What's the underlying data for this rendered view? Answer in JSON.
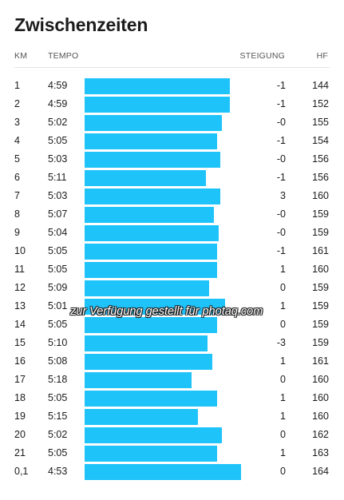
{
  "page": {
    "title": "Zwischenzeiten"
  },
  "columns": {
    "km": "KM",
    "tempo": "TEMPO",
    "steigung": "STEIGUNG",
    "hf": "HF"
  },
  "accent_color": "#1ec3fa",
  "watermark": "zur Verfügung gestellt für photaq.com",
  "splits": [
    {
      "km": "1",
      "tempo": "4:59",
      "pace_fraction": 0.91,
      "steigung": "-1",
      "hf": "144"
    },
    {
      "km": "2",
      "tempo": "4:59",
      "pace_fraction": 0.91,
      "steigung": "-1",
      "hf": "152"
    },
    {
      "km": "3",
      "tempo": "5:02",
      "pace_fraction": 0.86,
      "steigung": "-0",
      "hf": "155"
    },
    {
      "km": "4",
      "tempo": "5:05",
      "pace_fraction": 0.83,
      "steigung": "-1",
      "hf": "154"
    },
    {
      "km": "5",
      "tempo": "5:03",
      "pace_fraction": 0.85,
      "steigung": "-0",
      "hf": "156"
    },
    {
      "km": "6",
      "tempo": "5:11",
      "pace_fraction": 0.76,
      "steigung": "-1",
      "hf": "156"
    },
    {
      "km": "7",
      "tempo": "5:03",
      "pace_fraction": 0.85,
      "steigung": "3",
      "hf": "160"
    },
    {
      "km": "8",
      "tempo": "5:07",
      "pace_fraction": 0.81,
      "steigung": "-0",
      "hf": "159"
    },
    {
      "km": "9",
      "tempo": "5:04",
      "pace_fraction": 0.84,
      "steigung": "-0",
      "hf": "159"
    },
    {
      "km": "10",
      "tempo": "5:05",
      "pace_fraction": 0.83,
      "steigung": "-1",
      "hf": "161"
    },
    {
      "km": "11",
      "tempo": "5:05",
      "pace_fraction": 0.83,
      "steigung": "1",
      "hf": "160"
    },
    {
      "km": "12",
      "tempo": "5:09",
      "pace_fraction": 0.78,
      "steigung": "0",
      "hf": "159"
    },
    {
      "km": "13",
      "tempo": "5:01",
      "pace_fraction": 0.88,
      "steigung": "1",
      "hf": "159"
    },
    {
      "km": "14",
      "tempo": "5:05",
      "pace_fraction": 0.83,
      "steigung": "0",
      "hf": "159"
    },
    {
      "km": "15",
      "tempo": "5:10",
      "pace_fraction": 0.77,
      "steigung": "-3",
      "hf": "159"
    },
    {
      "km": "16",
      "tempo": "5:08",
      "pace_fraction": 0.8,
      "steigung": "1",
      "hf": "161"
    },
    {
      "km": "17",
      "tempo": "5:18",
      "pace_fraction": 0.67,
      "steigung": "0",
      "hf": "160"
    },
    {
      "km": "18",
      "tempo": "5:05",
      "pace_fraction": 0.83,
      "steigung": "1",
      "hf": "160"
    },
    {
      "km": "19",
      "tempo": "5:15",
      "pace_fraction": 0.71,
      "steigung": "1",
      "hf": "160"
    },
    {
      "km": "20",
      "tempo": "5:02",
      "pace_fraction": 0.86,
      "steigung": "0",
      "hf": "162"
    },
    {
      "km": "21",
      "tempo": "5:05",
      "pace_fraction": 0.83,
      "steigung": "1",
      "hf": "163"
    },
    {
      "km": "0,1",
      "tempo": "4:53",
      "pace_fraction": 0.98,
      "steigung": "0",
      "hf": "164"
    }
  ]
}
